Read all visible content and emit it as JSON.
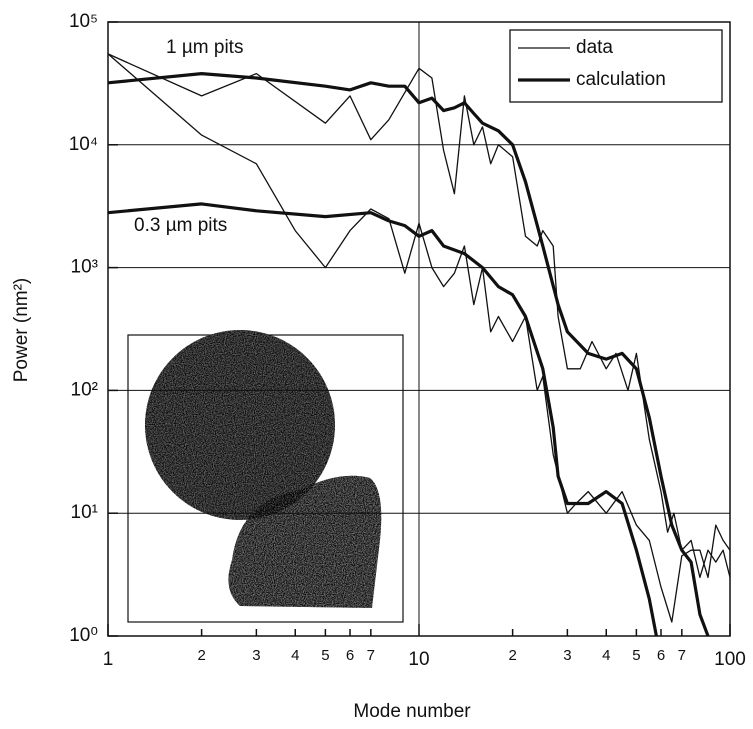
{
  "chart_data": {
    "type": "line",
    "xlabel": "Mode number",
    "ylabel": "Power (nm²)",
    "xscale": "log",
    "yscale": "log",
    "xlim": [
      1,
      100
    ],
    "ylim": [
      1,
      100000
    ],
    "xticks": [
      1,
      2,
      3,
      4,
      5,
      6,
      7,
      10,
      {
        "value": 20,
        "label": "2"
      },
      {
        "value": 30,
        "label": "3"
      },
      {
        "value": 40,
        "label": "4"
      },
      {
        "value": 50,
        "label": "5"
      },
      {
        "value": 60,
        "label": "6"
      },
      {
        "value": 70,
        "label": "7"
      },
      100
    ],
    "yticks": [
      {
        "value": 1,
        "label": "10⁰"
      },
      {
        "value": 10,
        "label": "10¹"
      },
      {
        "value": 100,
        "label": "10²"
      },
      {
        "value": 1000,
        "label": "10³"
      },
      {
        "value": 10000,
        "label": "10⁴"
      },
      {
        "value": 100000,
        "label": "10⁵"
      }
    ],
    "grid": true,
    "xgrid": [
      10
    ],
    "legend": "top right",
    "annotations": [
      "1 µm pits",
      "0.3 µm pits"
    ],
    "series": [
      {
        "name": "calculation",
        "color": "#111",
        "width": 3.2,
        "x": [
          1,
          2,
          3,
          5,
          6,
          7,
          8,
          9,
          10,
          11,
          12,
          13,
          14,
          15,
          16,
          18,
          20,
          22,
          25,
          28,
          30,
          35,
          40,
          45,
          50,
          55,
          60,
          65,
          70,
          75,
          80,
          85
        ],
        "values": [
          32000,
          38000,
          35000,
          30000,
          28000,
          32000,
          30000,
          30000,
          22000,
          24000,
          19000,
          20000,
          22000,
          18000,
          15000,
          13000,
          10000,
          5000,
          1500,
          500,
          300,
          200,
          180,
          200,
          150,
          60,
          20,
          8,
          5,
          4,
          1.5,
          1
        ]
      },
      {
        "name": "data",
        "color": "#111",
        "width": 1.3,
        "x": [
          1,
          2,
          3,
          5,
          6,
          7,
          8,
          10,
          11,
          12,
          13,
          14,
          15,
          16,
          17,
          18,
          20,
          22,
          24,
          25,
          27,
          28,
          30,
          33,
          36,
          40,
          43,
          47,
          50,
          55,
          60,
          63,
          66,
          70,
          75,
          80,
          85,
          90,
          95,
          100
        ],
        "values": [
          55000,
          25000,
          38000,
          15000,
          25000,
          11000,
          16000,
          42000,
          35000,
          9000,
          4000,
          25000,
          10000,
          14000,
          7000,
          10000,
          8000,
          1800,
          1500,
          2000,
          1500,
          400,
          150,
          150,
          250,
          150,
          200,
          100,
          200,
          40,
          15,
          7,
          10,
          5,
          6,
          3,
          5,
          4,
          5,
          3
        ]
      },
      {
        "name": "calculation",
        "color": "#111",
        "width": 3.2,
        "x": [
          1,
          2,
          3,
          5,
          7,
          8,
          9,
          10,
          11,
          12,
          14,
          16,
          18,
          20,
          22,
          25,
          27,
          28,
          30,
          35,
          40,
          45,
          50,
          55,
          58
        ],
        "values": [
          2800,
          3300,
          2900,
          2600,
          2800,
          2400,
          2200,
          1800,
          2000,
          1500,
          1300,
          1000,
          700,
          600,
          400,
          150,
          50,
          20,
          12,
          12,
          15,
          12,
          5,
          2,
          1
        ]
      },
      {
        "name": "data",
        "color": "#111",
        "width": 1.3,
        "x": [
          1,
          2,
          3,
          4,
          5,
          6,
          7,
          8,
          9,
          10,
          11,
          12,
          13,
          14,
          15,
          16,
          17,
          18,
          20,
          22,
          24,
          25,
          27,
          30,
          32,
          35,
          40,
          45,
          50,
          55,
          60,
          65,
          70,
          75,
          80,
          85,
          90,
          95,
          100
        ],
        "values": [
          55000,
          12000,
          7000,
          2000,
          1000,
          2000,
          3000,
          2500,
          900,
          2300,
          1000,
          700,
          900,
          1500,
          500,
          1000,
          300,
          400,
          250,
          400,
          100,
          130,
          30,
          10,
          12,
          15,
          10,
          15,
          8,
          6,
          2.5,
          1.3,
          4.5,
          5,
          5,
          3,
          8,
          6,
          5
        ]
      }
    ]
  }
}
